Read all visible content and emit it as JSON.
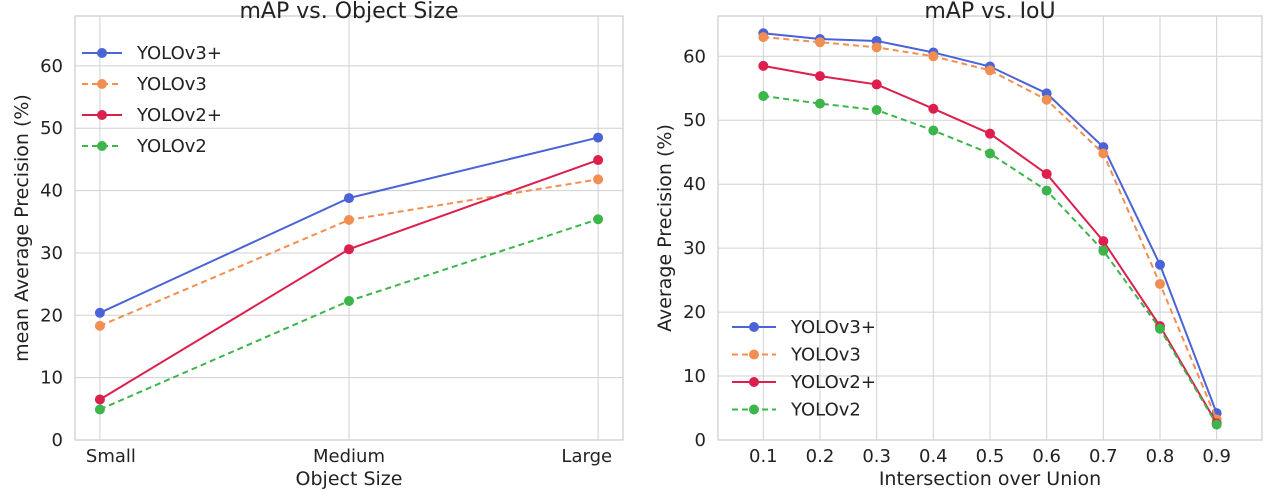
{
  "chart_data": [
    {
      "type": "line",
      "title": "mAP vs. Object Size",
      "xlabel": "Object Size",
      "ylabel": "mean Average Precision (%)",
      "categories": [
        "Small",
        "Medium",
        "Large"
      ],
      "ylim": [
        0,
        68
      ],
      "yticks": [
        0,
        10,
        20,
        30,
        40,
        50,
        60
      ],
      "grid": true,
      "legend_position": "top-left",
      "series": [
        {
          "name": "YOLOv3+",
          "values": [
            20.4,
            38.8,
            48.5
          ],
          "color": "#4a63d6",
          "dashed": false
        },
        {
          "name": "YOLOv3",
          "values": [
            18.3,
            35.3,
            41.8
          ],
          "color": "#f28e52",
          "dashed": true
        },
        {
          "name": "YOLOv2+",
          "values": [
            6.5,
            30.6,
            44.9
          ],
          "color": "#dc1f4c",
          "dashed": false
        },
        {
          "name": "YOLOv2",
          "values": [
            4.9,
            22.3,
            35.4
          ],
          "color": "#3cb54a",
          "dashed": true
        }
      ]
    },
    {
      "type": "line",
      "title": "mAP vs. IoU",
      "xlabel": "Intersection over Union",
      "ylabel": "Average Precision (%)",
      "x": [
        0.1,
        0.2,
        0.3,
        0.4,
        0.5,
        0.6,
        0.7,
        0.8,
        0.9
      ],
      "xtick_labels": [
        "0.1",
        "0.2",
        "0.3",
        "0.4",
        "0.5",
        "0.6",
        "0.7",
        "0.8",
        "0.9"
      ],
      "xlim": [
        0.02,
        0.98
      ],
      "ylim": [
        0,
        66.3
      ],
      "yticks": [
        0,
        10,
        20,
        30,
        40,
        50,
        60
      ],
      "grid": true,
      "legend_position": "bottom-left",
      "series": [
        {
          "name": "YOLOv3+",
          "values": [
            63.6,
            62.7,
            62.4,
            60.6,
            58.4,
            54.2,
            45.8,
            27.4,
            4.2
          ],
          "color": "#4a63d6",
          "dashed": false
        },
        {
          "name": "YOLOv3",
          "values": [
            63.0,
            62.2,
            61.4,
            60.0,
            57.8,
            53.2,
            44.8,
            24.4,
            3.2
          ],
          "color": "#f28e52",
          "dashed": true
        },
        {
          "name": "YOLOv2+",
          "values": [
            58.5,
            56.9,
            55.6,
            51.8,
            47.9,
            41.6,
            31.1,
            17.8,
            2.6
          ],
          "color": "#dc1f4c",
          "dashed": false
        },
        {
          "name": "YOLOv2",
          "values": [
            53.8,
            52.6,
            51.6,
            48.4,
            44.8,
            39.0,
            29.6,
            17.4,
            2.4
          ],
          "color": "#3cb54a",
          "dashed": true
        }
      ]
    }
  ]
}
